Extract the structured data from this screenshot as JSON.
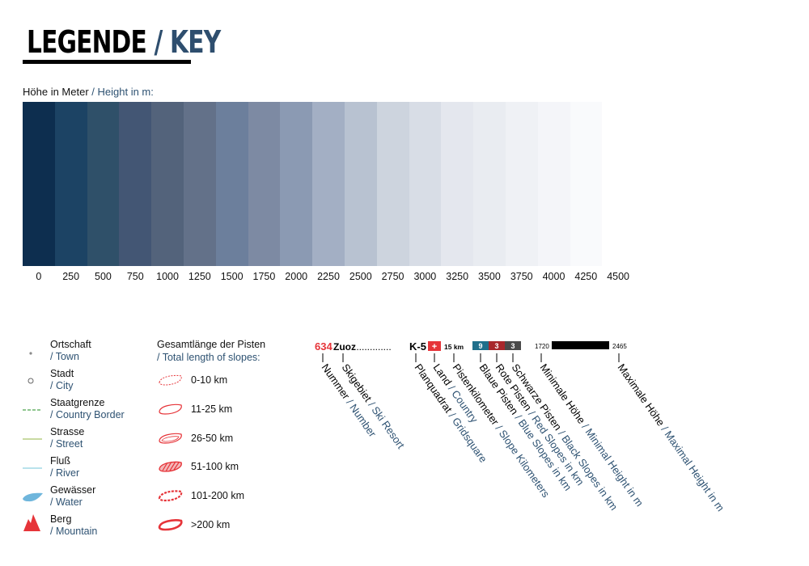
{
  "header": {
    "title_de": "LEGENDE",
    "title_sep": " / ",
    "title_en": "KEY"
  },
  "height_scale": {
    "label_de": "Höhe in Meter",
    "label_sep": " / ",
    "label_en": "Height in m:",
    "ticks": [
      "0",
      "250",
      "500",
      "750",
      "1000",
      "1250",
      "1500",
      "1750",
      "2000",
      "2250",
      "2500",
      "2750",
      "3000",
      "3250",
      "3500",
      "3750",
      "4000",
      "4250",
      "4500"
    ],
    "colors": [
      "#0d2e4f",
      "#1c4364",
      "#2f5069",
      "#435674",
      "#53637b",
      "#637189",
      "#6c7f9c",
      "#7d8aa3",
      "#8b9ab3",
      "#a3afc4",
      "#b8c2d1",
      "#cdd4de",
      "#d8dde6",
      "#e4e7ee",
      "#e9ecf1",
      "#eff1f5",
      "#f4f5f9",
      "#f9fafc",
      "#ffffff"
    ]
  },
  "map_legend": [
    {
      "key": "town",
      "de": "Ortschaft",
      "en": "/ Town"
    },
    {
      "key": "city",
      "de": "Stadt",
      "en": "/ City"
    },
    {
      "key": "border",
      "de": "Staatgrenze",
      "en": "/ Country Border"
    },
    {
      "key": "street",
      "de": "Strasse",
      "en": "/ Street"
    },
    {
      "key": "river",
      "de": "Fluß",
      "en": "/ River"
    },
    {
      "key": "water",
      "de": "Gewässer",
      "en": "/ Water"
    },
    {
      "key": "mountain",
      "de": "Berg",
      "en": "/ Mountain"
    }
  ],
  "slopes": {
    "title_de": "Gesamtlänge der Pisten",
    "title_en": "/ Total length of slopes:",
    "items": [
      "0-10 km",
      "11-25 km",
      "26-50 km",
      "51-100 km",
      "101-200 km",
      ">200 km"
    ]
  },
  "resort_key": {
    "number": "634",
    "name": "Zuoz",
    "dots": "..............",
    "grid": "K-5",
    "flag_symbol": "+",
    "km": "15 km",
    "blue_count": "9",
    "red_count": "3",
    "black_count": "3",
    "min_height": "1720",
    "max_height": "2465",
    "labels": [
      {
        "de": "Nummer",
        "en": "/ Number"
      },
      {
        "de": "Skigebiet",
        "en": "/ Ski Resort"
      },
      {
        "de": "Planquadrat",
        "en": "/ Gridsquare"
      },
      {
        "de": "Land",
        "en": "/ Country"
      },
      {
        "de": "Pistenkilometer",
        "en": "/ Slope Kilometers"
      },
      {
        "de": "Blaue Pisten",
        "en": "/ Blue Slopes in km"
      },
      {
        "de": "Rote Pisten",
        "en": "/ Red Slopes in km"
      },
      {
        "de": "Schwarze Pisten",
        "en": "/ Black Slopes in km"
      },
      {
        "de": "Minimale Höhe",
        "en": "/ Minimal Height in m"
      },
      {
        "de": "Maximale Höhe",
        "en": "/ Maximal Height in m"
      }
    ],
    "colors": {
      "red": "#e63439",
      "blue": "#1f6f8b",
      "darkred": "#a8282c",
      "gray": "#4a4a4a",
      "label_en": "#2e5272"
    }
  }
}
